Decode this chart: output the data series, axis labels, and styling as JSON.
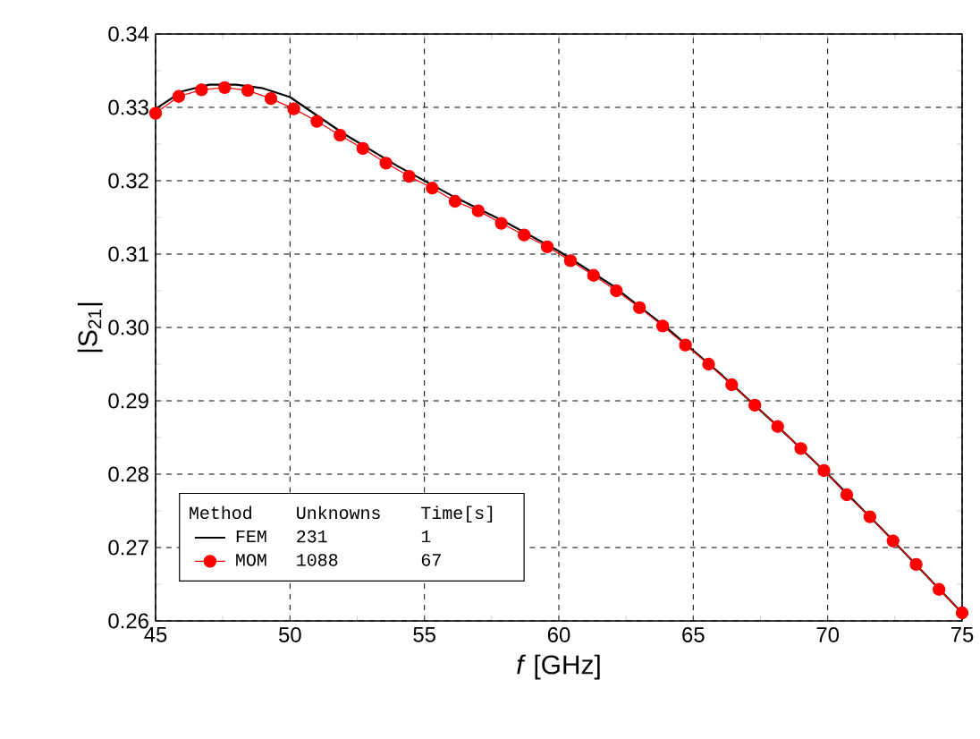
{
  "chart_data": {
    "type": "line",
    "xlabel": "*f* [GHz]",
    "ylabel": "|S$_{21}$|",
    "xlim": [
      45,
      75
    ],
    "ylim": [
      0.26,
      0.34
    ],
    "xticks": [
      45,
      50,
      55,
      60,
      65,
      70,
      75
    ],
    "yticks": [
      {
        "value": 0.26,
        "label": "0.26"
      },
      {
        "value": 0.27,
        "label": "0.27"
      },
      {
        "value": 0.28,
        "label": "0.28"
      },
      {
        "value": 0.29,
        "label": "0.29"
      },
      {
        "value": 0.3,
        "label": "0.30"
      },
      {
        "value": 0.31,
        "label": "0.31"
      },
      {
        "value": 0.32,
        "label": "0.32"
      },
      {
        "value": 0.33,
        "label": "0.33"
      },
      {
        "value": 0.34,
        "label": "0.34"
      }
    ],
    "grid": true,
    "legend": "bottom left",
    "legend_title": "Method",
    "annotations": [
      "Unknowns",
      "Time[s]",
      "231",
      "1",
      "1088",
      "67"
    ],
    "series": [
      {
        "name": "FEM",
        "color": "#000000",
        "marker": "none",
        "x": [
          45,
          46,
          47,
          48,
          49,
          50,
          52,
          54,
          56,
          58,
          60,
          62,
          64,
          66,
          68,
          70,
          72,
          74,
          75
        ],
        "values": [
          0.3298,
          0.3322,
          0.3331,
          0.3331,
          0.3326,
          0.3314,
          0.3264,
          0.322,
          0.318,
          0.3144,
          0.3104,
          0.3057,
          0.3,
          0.2937,
          0.287,
          0.28,
          0.2726,
          0.2649,
          0.2611
        ]
      },
      {
        "name": "MOM",
        "color": "#ff0000",
        "marker": "circle",
        "x": [
          45,
          45.86,
          46.71,
          47.57,
          48.43,
          49.29,
          50.14,
          51,
          51.86,
          52.71,
          53.57,
          54.43,
          55.29,
          56.14,
          57,
          57.86,
          58.71,
          59.57,
          60.43,
          61.29,
          62.14,
          63,
          63.86,
          64.71,
          65.57,
          66.43,
          67.29,
          68.14,
          69,
          69.86,
          70.71,
          71.57,
          72.43,
          73.29,
          74.14,
          75
        ],
        "values": [
          0.3292,
          0.3315,
          0.3324,
          0.3327,
          0.3323,
          0.3312,
          0.3298,
          0.3281,
          0.3262,
          0.3244,
          0.3224,
          0.3206,
          0.319,
          0.3172,
          0.3159,
          0.3142,
          0.3126,
          0.311,
          0.3091,
          0.3071,
          0.305,
          0.3027,
          0.3002,
          0.2976,
          0.295,
          0.2922,
          0.2894,
          0.2865,
          0.2835,
          0.2805,
          0.2772,
          0.2742,
          0.2709,
          0.2677,
          0.2643,
          0.2611
        ]
      }
    ]
  }
}
